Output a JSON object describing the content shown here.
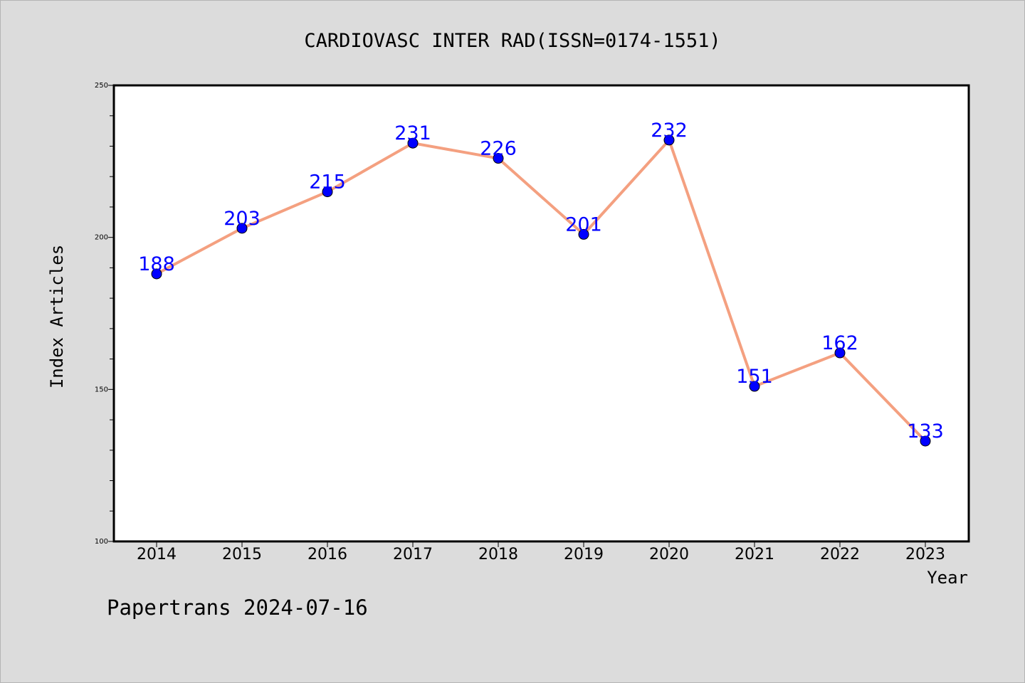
{
  "chart_data": {
    "type": "line",
    "title": "CARDIOVASC INTER RAD(ISSN=0174-1551)",
    "xlabel": "Year",
    "ylabel": "Index Articles",
    "categories": [
      "2014",
      "2015",
      "2016",
      "2017",
      "2018",
      "2019",
      "2020",
      "2021",
      "2022",
      "2023"
    ],
    "values": [
      188,
      203,
      215,
      231,
      226,
      201,
      232,
      151,
      162,
      133
    ],
    "data_labels": [
      "188",
      "203",
      "215",
      "231",
      "226",
      "201",
      "232",
      "151",
      "162",
      "133"
    ],
    "ylim": [
      100,
      250
    ],
    "yticks": [
      100,
      150,
      200,
      250
    ],
    "ytick_labels": [
      "100",
      "150",
      "200",
      "250"
    ],
    "grid": false,
    "colors": {
      "line": "#f4a080",
      "marker": "#0000ff",
      "data_label": "#0000ff",
      "plot_background": "#ffffff",
      "figure_background": "#dcdcdc"
    }
  },
  "footer": {
    "watermark": "Papertrans 2024-07-16"
  }
}
